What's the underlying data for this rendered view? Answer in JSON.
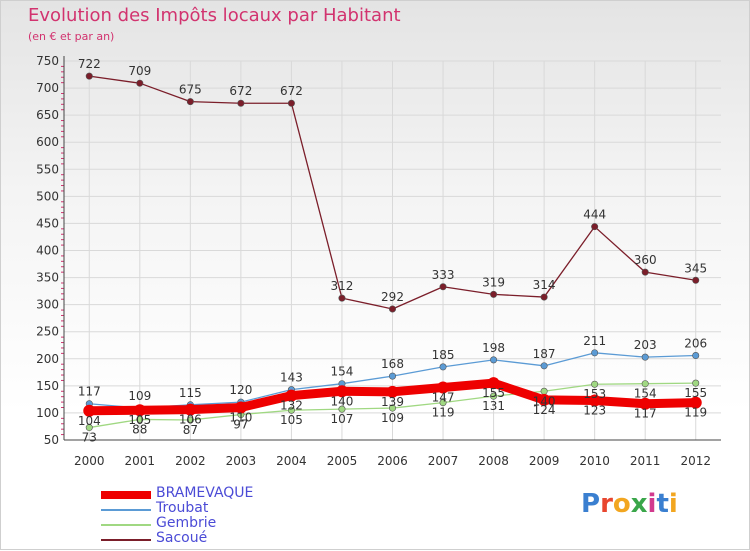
{
  "title": "Evolution des Impôts locaux par Habitant",
  "subtitle": "(en € et par an)",
  "logo": {
    "text": "Proxiti",
    "colors": [
      "#3a7fd0",
      "#e8462f",
      "#f2a620",
      "#3aa64a",
      "#d23a8e",
      "#3a7fd0",
      "#f2a620"
    ]
  },
  "chart_data": {
    "type": "line",
    "x": [
      "2000",
      "2001",
      "2002",
      "2003",
      "2004",
      "2005",
      "2006",
      "2007",
      "2008",
      "2009",
      "2010",
      "2011",
      "2012"
    ],
    "ylim": [
      50,
      750
    ],
    "yticks": [
      50,
      100,
      150,
      200,
      250,
      300,
      350,
      400,
      450,
      500,
      550,
      600,
      650,
      700,
      750
    ],
    "grid": true,
    "series": [
      {
        "name": "BRAMEVAQUE",
        "color": "#ee0000",
        "values": [
          104,
          105,
          106,
          110,
          132,
          140,
          139,
          147,
          155,
          124,
          123,
          117,
          119
        ],
        "labels": [
          "104",
          "105",
          "106",
          "110",
          "132",
          "140",
          "139",
          "147",
          "155",
          "124",
          "123",
          "117",
          "119"
        ]
      },
      {
        "name": "Troubat",
        "color": "#5b9bd5",
        "values": [
          117,
          109,
          115,
          120,
          143,
          154,
          168,
          185,
          198,
          187,
          211,
          203,
          206
        ],
        "labels": [
          "117",
          "109",
          "115",
          "120",
          "143",
          "154",
          "168",
          "185",
          "198",
          "187",
          "211",
          "203",
          "206"
        ]
      },
      {
        "name": "Gembrie",
        "color": "#a0d882",
        "values": [
          73,
          88,
          87,
          97,
          105,
          107,
          109,
          119,
          131,
          140,
          153,
          154,
          155
        ],
        "labels": [
          "73",
          "88",
          "87",
          "97",
          "105",
          "107",
          "109",
          "119",
          "131",
          "140",
          "153",
          "154",
          "155"
        ]
      },
      {
        "name": "Sacoué",
        "color": "#7b1e2a",
        "values": [
          722,
          709,
          675,
          672,
          672,
          312,
          292,
          333,
          319,
          314,
          444,
          360,
          345
        ],
        "labels": [
          "722",
          "709",
          "675",
          "672",
          "672",
          "312",
          "292",
          "333",
          "319",
          "314",
          "444",
          "360",
          "345"
        ]
      }
    ]
  }
}
